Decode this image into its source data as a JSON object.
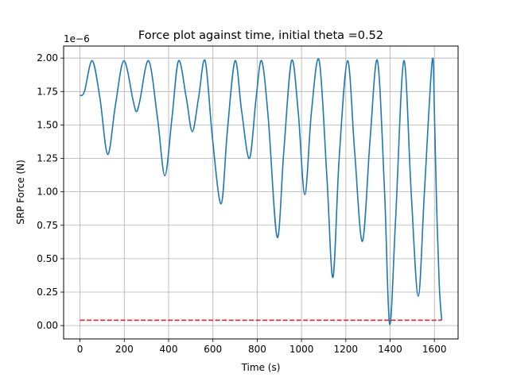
{
  "chart_data": {
    "type": "line",
    "title": "Force plot against time, initial theta =0.52",
    "xlabel": "Time (s)",
    "ylabel": "SRP Force (N)",
    "offset_text": "1e−6",
    "xlim": [
      -74,
      1707
    ],
    "ylim": [
      -0.1,
      2.09
    ],
    "xticks": [
      0,
      200,
      400,
      600,
      800,
      1000,
      1200,
      1400,
      1600
    ],
    "xtick_labels": [
      "0",
      "200",
      "400",
      "600",
      "800",
      "1000",
      "1200",
      "1400",
      "1600"
    ],
    "yticks": [
      0.0,
      0.25,
      0.5,
      0.75,
      1.0,
      1.25,
      1.5,
      1.75,
      2.0
    ],
    "ytick_labels": [
      "0.00",
      "0.25",
      "0.50",
      "0.75",
      "1.00",
      "1.25",
      "1.50",
      "1.75",
      "2.00"
    ],
    "grid": true,
    "series": [
      {
        "style": "solid",
        "color": "#1f77b4",
        "x": [
          0,
          20,
          55,
          90,
          125,
          160,
          198,
          240,
          255,
          270,
          310,
          350,
          383,
          415,
          445,
          480,
          507,
          535,
          565,
          598,
          637,
          665,
          700,
          730,
          765,
          795,
          820,
          850,
          890,
          920,
          955,
          985,
          1015,
          1045,
          1080,
          1115,
          1142,
          1170,
          1208,
          1240,
          1275,
          1310,
          1343,
          1375,
          1398,
          1425,
          1462,
          1495,
          1527,
          1555,
          1590,
          1600,
          1610,
          1622,
          1633
        ],
        "y": [
          1.72,
          1.75,
          1.98,
          1.7,
          1.28,
          1.65,
          1.98,
          1.68,
          1.6,
          1.68,
          1.98,
          1.55,
          1.12,
          1.55,
          1.98,
          1.7,
          1.45,
          1.7,
          1.98,
          1.4,
          0.91,
          1.45,
          1.98,
          1.6,
          1.25,
          1.7,
          1.98,
          1.55,
          0.66,
          1.3,
          1.98,
          1.6,
          0.98,
          1.6,
          1.98,
          1.1,
          0.36,
          1.25,
          1.98,
          1.3,
          0.63,
          1.4,
          1.98,
          1.0,
          0.01,
          0.8,
          1.98,
          1.0,
          0.22,
          1.0,
          1.98,
          1.6,
          0.9,
          0.3,
          0.04
        ]
      },
      {
        "style": "dashed",
        "color": "#d62728",
        "x": [
          0,
          1633
        ],
        "y": [
          0.04,
          0.04
        ]
      }
    ]
  }
}
